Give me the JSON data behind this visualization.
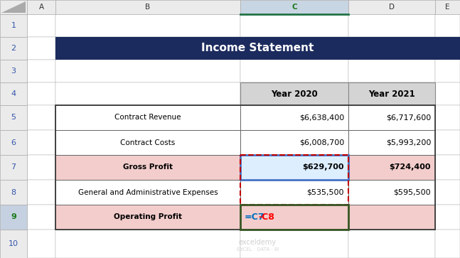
{
  "title": "Income Statement",
  "title_bg": "#1C2B5E",
  "title_color": "#FFFFFF",
  "rows": [
    {
      "label": "Contract Revenue",
      "v2020": "$6,638,400",
      "v2021": "$6,717,600",
      "bold": false,
      "bg": "#FFFFFF"
    },
    {
      "label": "Contract Costs",
      "v2020": "$6,008,700",
      "v2021": "$5,993,200",
      "bold": false,
      "bg": "#FFFFFF"
    },
    {
      "label": "Gross Profit",
      "v2020": "$629,700",
      "v2021": "$724,400",
      "bold": true,
      "bg": "#F2CDCC"
    },
    {
      "label": "General and Administrative Expenses",
      "v2020": "$535,500",
      "v2021": "$595,500",
      "bold": false,
      "bg": "#FFFFFF"
    },
    {
      "label": "Operating Profit",
      "v2020": "=C7-C8",
      "v2021": "",
      "bold": true,
      "bg": "#F2CDCC"
    }
  ],
  "formula_blue": "#0070C0",
  "formula_red": "#FF0000",
  "border_blue": "#4472C4",
  "border_red": "#C00000",
  "border_green": "#375623",
  "excel_gray": "#D4D4D4",
  "excel_header_bg": "#E8E8E8",
  "grid_light": "#B0B0B0",
  "grid_dark": "#555555",
  "sel_col_bg": "#C8D4E4",
  "sel_row_bg": "#C8D4E4",
  "watermark_color": "#B0B0B0"
}
